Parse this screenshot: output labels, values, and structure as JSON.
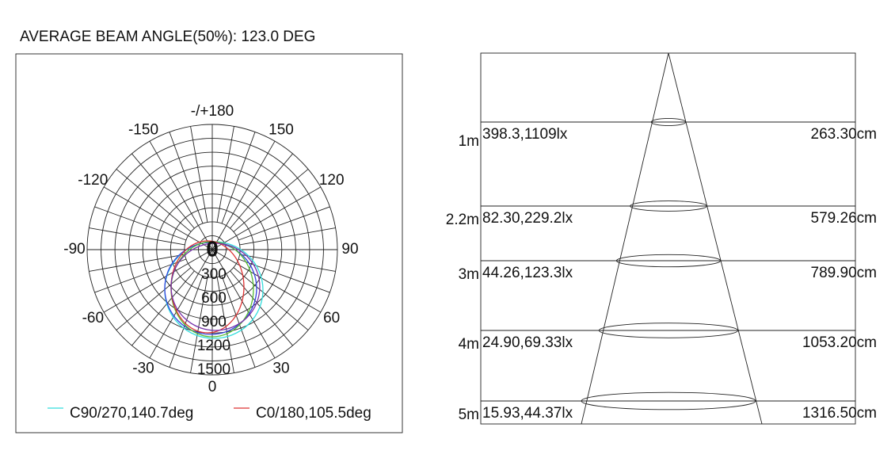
{
  "header": {
    "title": "AVERAGE BEAM ANGLE(50%): 123.0 DEG"
  },
  "polar": {
    "angle_labels": [
      {
        "text": "-/+180",
        "angle": 180
      },
      {
        "text": "150",
        "angle": 150
      },
      {
        "text": "-150",
        "angle": -150
      },
      {
        "text": "120",
        "angle": 120
      },
      {
        "text": "-120",
        "angle": -120
      },
      {
        "text": "90",
        "angle": 90
      },
      {
        "text": "-90",
        "angle": -90
      },
      {
        "text": "60",
        "angle": 60
      },
      {
        "text": "-60",
        "angle": -60
      },
      {
        "text": "30",
        "angle": 30
      },
      {
        "text": "-30",
        "angle": -30
      },
      {
        "text": "0",
        "angle": 0
      }
    ],
    "center_label": "0",
    "radial_labels": [
      "300",
      "600",
      "900",
      "1200",
      "1500"
    ],
    "legend": [
      {
        "name": "C90/270,140.7deg",
        "color": "#33dddd"
      },
      {
        "name": "C0/180,105.5deg",
        "color": "#dd3333"
      }
    ]
  },
  "cone": {
    "rows": [
      {
        "distance": "1m",
        "illuminance": "398.3,1109lx",
        "diameter": "263.30cm"
      },
      {
        "distance": "2.2m",
        "illuminance": "82.30,229.2lx",
        "diameter": "579.26cm"
      },
      {
        "distance": "3m",
        "illuminance": "44.26,123.3lx",
        "diameter": "789.90cm"
      },
      {
        "distance": "4m",
        "illuminance": "24.90,69.33lx",
        "diameter": "1053.20cm"
      },
      {
        "distance": "5m",
        "illuminance": "15.93,44.37lx",
        "diameter": "1316.50cm"
      }
    ]
  }
}
